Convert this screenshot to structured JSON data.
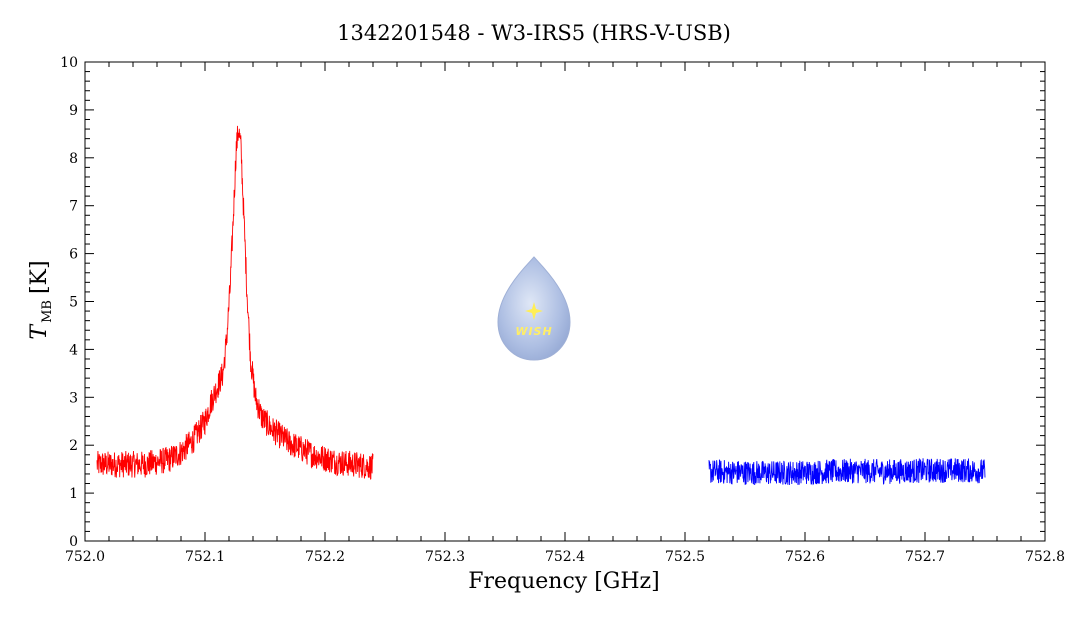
{
  "chart_data": {
    "type": "line",
    "title": "1342201548 - W3-IRS5 (HRS-V-USB)",
    "xlabel": "Frequency [GHz]",
    "ylabel_symbol": "T",
    "ylabel_subscript": "MB",
    "ylabel_unit": "[K]",
    "xlim": [
      752.0,
      752.8
    ],
    "ylim": [
      0,
      10
    ],
    "x_ticks": [
      "752.0",
      "752.1",
      "752.2",
      "752.3",
      "752.4",
      "752.5",
      "752.6",
      "752.7",
      "752.8"
    ],
    "y_ticks": [
      "0",
      "1",
      "2",
      "3",
      "4",
      "5",
      "6",
      "7",
      "8",
      "9",
      "10"
    ],
    "grid": false,
    "series": [
      {
        "color": "#ff0000",
        "x": [
          752.01,
          752.03,
          752.05,
          752.07,
          752.08,
          752.09,
          752.1,
          752.105,
          752.11,
          752.115,
          752.118,
          752.121,
          752.124,
          752.126,
          752.128,
          752.13,
          752.132,
          752.135,
          752.138,
          752.142,
          752.147,
          752.155,
          752.17,
          752.19,
          752.21,
          752.24
        ],
        "values": [
          1.6,
          1.6,
          1.6,
          1.7,
          1.85,
          2.1,
          2.5,
          2.9,
          3.2,
          3.5,
          4.2,
          5.3,
          7.0,
          8.2,
          8.6,
          8.2,
          7.0,
          5.2,
          3.8,
          3.0,
          2.6,
          2.35,
          2.05,
          1.8,
          1.65,
          1.55
        ]
      },
      {
        "color": "#0000ff",
        "x": [
          752.52,
          752.55,
          752.58,
          752.61,
          752.64,
          752.67,
          752.7,
          752.73,
          752.75
        ],
        "values": [
          1.45,
          1.43,
          1.42,
          1.44,
          1.46,
          1.45,
          1.47,
          1.48,
          1.45
        ]
      }
    ]
  },
  "logo": {
    "text": "WISH"
  }
}
